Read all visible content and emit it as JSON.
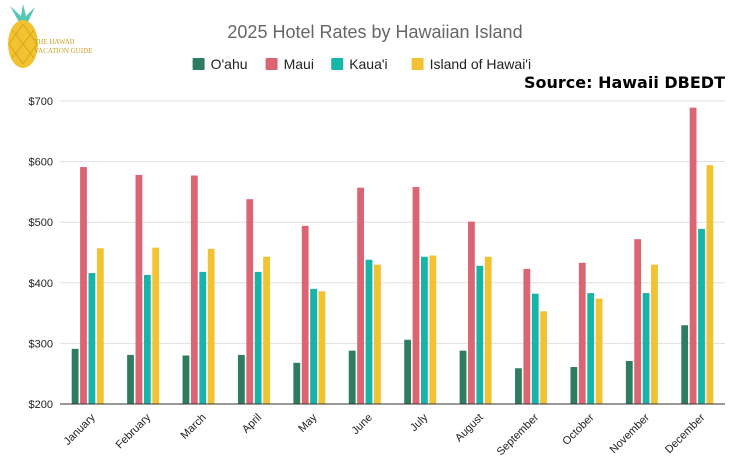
{
  "logo": {
    "line1": "THE HAWAII",
    "line2": "VACATION GUIDE"
  },
  "source_label": "Source: Hawaii DBEDT",
  "colors": {
    "oahu": "#2e7d60",
    "maui": "#dc6573",
    "kauai": "#16b5a8",
    "hawaii": "#f1c232",
    "grid": "#e0e0e0",
    "axis": "#333333"
  },
  "chart_data": {
    "type": "bar",
    "title": "2025 Hotel Rates by Hawaiian Island",
    "xlabel": "",
    "ylabel": "",
    "ylim": [
      200,
      700
    ],
    "yticks": [
      200,
      300,
      400,
      500,
      600,
      700
    ],
    "ytick_labels": [
      "$200",
      "$300",
      "$400",
      "$500",
      "$600",
      "$700"
    ],
    "grid": true,
    "legend": "top",
    "categories": [
      "January",
      "February",
      "March",
      "April",
      "May",
      "June",
      "July",
      "August",
      "September",
      "October",
      "November",
      "December"
    ],
    "series": [
      {
        "name": "O'ahu",
        "color": "#2e7d60",
        "values": [
          291,
          281,
          280,
          281,
          268,
          288,
          306,
          288,
          259,
          261,
          271,
          330
        ]
      },
      {
        "name": "Maui",
        "color": "#dc6573",
        "values": [
          591,
          578,
          577,
          538,
          494,
          557,
          558,
          501,
          423,
          433,
          472,
          689
        ]
      },
      {
        "name": "Kaua'i",
        "color": "#16b5a8",
        "values": [
          416,
          413,
          418,
          418,
          390,
          438,
          443,
          428,
          382,
          383,
          383,
          489
        ]
      },
      {
        "name": "Island of Hawai'i",
        "color": "#f1c232",
        "values": [
          457,
          458,
          456,
          443,
          386,
          430,
          445,
          443,
          353,
          374,
          430,
          594
        ]
      }
    ]
  }
}
